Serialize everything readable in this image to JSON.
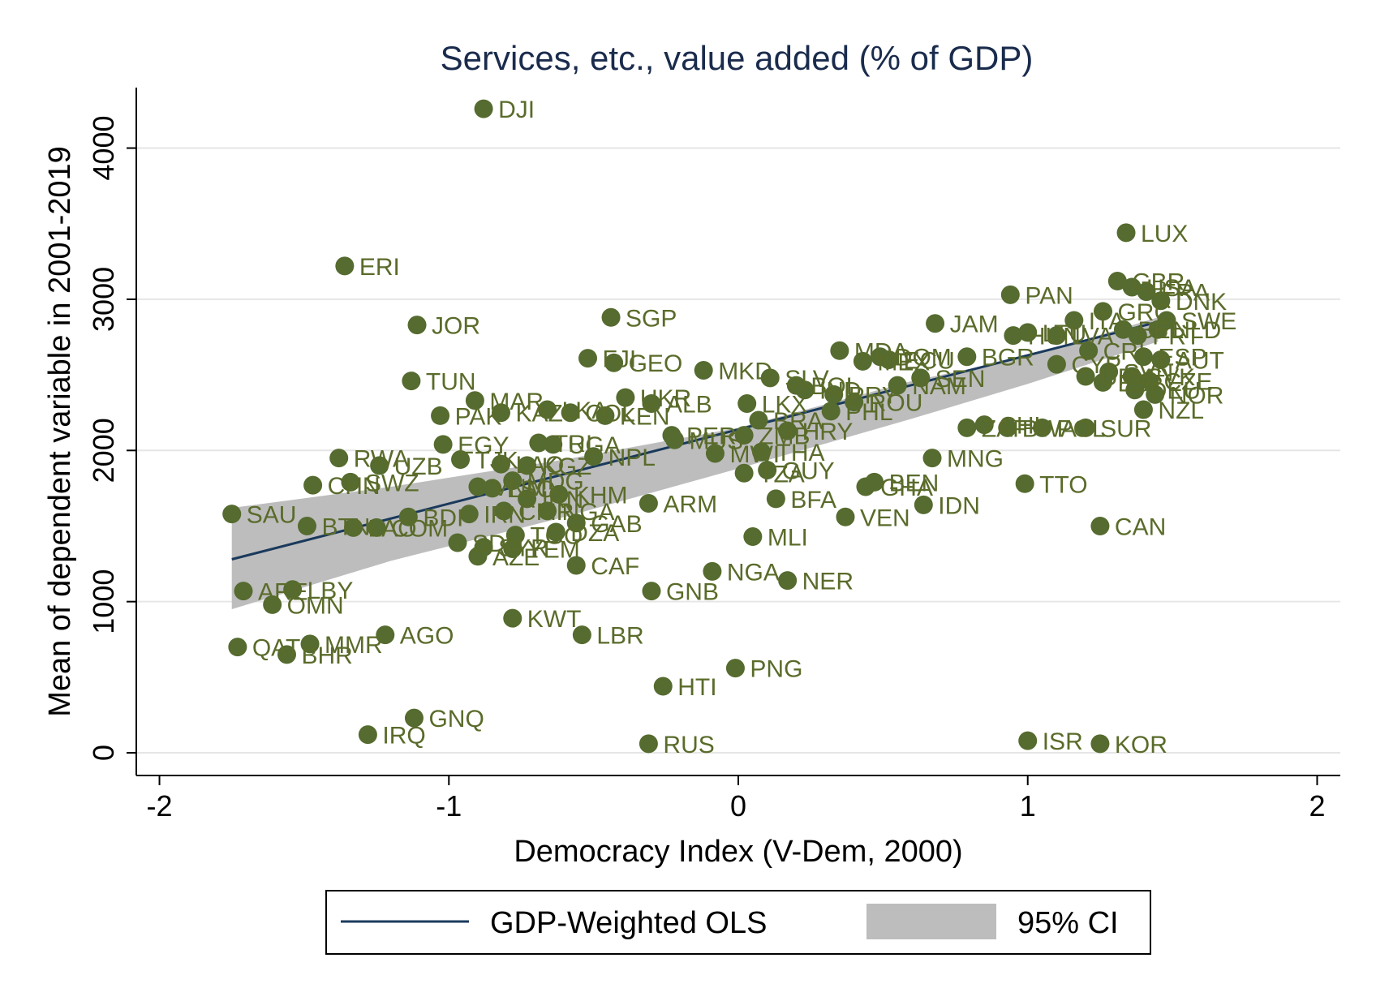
{
  "chart_data": {
    "type": "scatter",
    "title": "Services, etc., value added (% of GDP)",
    "xlabel": "Democracy Index (V-Dem, 2000)",
    "ylabel": "Mean of dependent variable in 2001-2019",
    "xlim": [
      -2.08,
      2.08
    ],
    "ylim": [
      -150,
      4400
    ],
    "xticks": [
      -2,
      -1,
      0,
      1,
      2
    ],
    "xtick_labels": [
      "-2",
      "-1",
      "0",
      "1",
      "2"
    ],
    "yticks": [
      0,
      1000,
      2000,
      3000,
      4000
    ],
    "ytick_labels": [
      "0",
      "1000",
      "2000",
      "3000",
      "4000"
    ],
    "grid": "horizontal",
    "legend_position": "bottom",
    "legend": [
      "GDP-Weighted OLS",
      "95% CI"
    ],
    "colors": {
      "points": "#556b2f",
      "label": "#5a6b2a",
      "fit": "#1a3a5c",
      "ci": "#bdbdbd",
      "title": "#1a2b4c"
    },
    "fit_line": {
      "x": [
        -1.75,
        1.45
      ],
      "y": [
        1280,
        2850
      ]
    },
    "ci_band": {
      "x": [
        -1.75,
        -1.2,
        -0.6,
        0.0,
        0.6,
        1.0,
        1.45
      ],
      "lower": [
        950,
        1270,
        1560,
        1880,
        2210,
        2440,
        2720
      ],
      "upper": [
        1620,
        1760,
        1940,
        2150,
        2460,
        2620,
        2880
      ]
    },
    "points": [
      {
        "x": -0.88,
        "y": 4260,
        "label": "DJI"
      },
      {
        "x": -1.36,
        "y": 3220,
        "label": "ERI"
      },
      {
        "x": -1.11,
        "y": 2830,
        "label": "JOR"
      },
      {
        "x": -0.44,
        "y": 2880,
        "label": "SGP"
      },
      {
        "x": -1.13,
        "y": 2460,
        "label": "TUN"
      },
      {
        "x": -0.52,
        "y": 2610,
        "label": "FJI"
      },
      {
        "x": -0.43,
        "y": 2580,
        "label": "GEO"
      },
      {
        "x": -0.12,
        "y": 2530,
        "label": "MKD"
      },
      {
        "x": 0.11,
        "y": 2480,
        "label": "SLV"
      },
      {
        "x": -0.91,
        "y": 2330,
        "label": "MAR"
      },
      {
        "x": -0.39,
        "y": 2350,
        "label": "UKR"
      },
      {
        "x": -0.3,
        "y": 2310,
        "label": "ALB"
      },
      {
        "x": -1.03,
        "y": 2230,
        "label": "PAK"
      },
      {
        "x": -0.82,
        "y": 2250,
        "label": "KAZ"
      },
      {
        "x": -0.66,
        "y": 2270,
        "label": "LKA"
      },
      {
        "x": -0.58,
        "y": 2250,
        "label": "COL"
      },
      {
        "x": -0.46,
        "y": 2230,
        "label": "KEN"
      },
      {
        "x": -1.02,
        "y": 2040,
        "label": "EGY"
      },
      {
        "x": -0.69,
        "y": 2050,
        "label": "TRI"
      },
      {
        "x": -0.64,
        "y": 2040,
        "label": "UGA"
      },
      {
        "x": -0.23,
        "y": 2100,
        "label": "PER"
      },
      {
        "x": -0.22,
        "y": 2070,
        "label": "MUS"
      },
      {
        "x": 0.03,
        "y": 2310,
        "label": "LKX"
      },
      {
        "x": 0.07,
        "y": 2200,
        "label": "BRA"
      },
      {
        "x": 0.17,
        "y": 2130,
        "label": "HRY"
      },
      {
        "x": 0.02,
        "y": 2100,
        "label": "ZMB"
      },
      {
        "x": -0.08,
        "y": 1980,
        "label": "MWI"
      },
      {
        "x": 0.08,
        "y": 1990,
        "label": "THA"
      },
      {
        "x": 0.1,
        "y": 1870,
        "label": "GUY"
      },
      {
        "x": 0.02,
        "y": 1850,
        "label": "TZA"
      },
      {
        "x": -1.38,
        "y": 1950,
        "label": "RWA"
      },
      {
        "x": -1.24,
        "y": 1900,
        "label": "UZB"
      },
      {
        "x": -0.96,
        "y": 1940,
        "label": "TJK"
      },
      {
        "x": -0.82,
        "y": 1910,
        "label": "LAO"
      },
      {
        "x": -0.73,
        "y": 1900,
        "label": "KGZ"
      },
      {
        "x": -0.5,
        "y": 1960,
        "label": "NPL"
      },
      {
        "x": -1.47,
        "y": 1770,
        "label": "CHN"
      },
      {
        "x": -1.34,
        "y": 1790,
        "label": "SWZ"
      },
      {
        "x": -0.9,
        "y": 1760,
        "label": "VNM"
      },
      {
        "x": -0.85,
        "y": 1750,
        "label": "LSO"
      },
      {
        "x": -0.78,
        "y": 1800,
        "label": "MDG"
      },
      {
        "x": -0.62,
        "y": 1710,
        "label": "KHM"
      },
      {
        "x": -0.73,
        "y": 1680,
        "label": "IRN"
      },
      {
        "x": -0.66,
        "y": 1600,
        "label": "NGA"
      },
      {
        "x": -1.75,
        "y": 1580,
        "label": "SAU"
      },
      {
        "x": -1.49,
        "y": 1500,
        "label": "BTN"
      },
      {
        "x": -1.33,
        "y": 1490,
        "label": "LAO"
      },
      {
        "x": -1.25,
        "y": 1490,
        "label": "COM"
      },
      {
        "x": -1.14,
        "y": 1560,
        "label": "BDI"
      },
      {
        "x": -0.93,
        "y": 1580,
        "label": "IRN"
      },
      {
        "x": -0.81,
        "y": 1600,
        "label": "CMR"
      },
      {
        "x": -0.56,
        "y": 1520,
        "label": "GAB"
      },
      {
        "x": -0.31,
        "y": 1650,
        "label": "ARM"
      },
      {
        "x": -0.97,
        "y": 1390,
        "label": "SDN"
      },
      {
        "x": -0.88,
        "y": 1360,
        "label": "SYR"
      },
      {
        "x": -0.77,
        "y": 1440,
        "label": "TGO"
      },
      {
        "x": -0.63,
        "y": 1460,
        "label": "DZA"
      },
      {
        "x": -0.9,
        "y": 1300,
        "label": "AZE"
      },
      {
        "x": -0.78,
        "y": 1350,
        "label": "YEM"
      },
      {
        "x": -0.56,
        "y": 1240,
        "label": "CAF"
      },
      {
        "x": -1.71,
        "y": 1070,
        "label": "ARE"
      },
      {
        "x": -1.54,
        "y": 1080,
        "label": "LBY"
      },
      {
        "x": -1.61,
        "y": 980,
        "label": "OMN"
      },
      {
        "x": -1.73,
        "y": 700,
        "label": "QAT"
      },
      {
        "x": -1.48,
        "y": 720,
        "label": "MMR"
      },
      {
        "x": -1.56,
        "y": 650,
        "label": "BHR"
      },
      {
        "x": -1.22,
        "y": 780,
        "label": "AGO"
      },
      {
        "x": -0.78,
        "y": 890,
        "label": "KWT"
      },
      {
        "x": -0.54,
        "y": 780,
        "label": "LBR"
      },
      {
        "x": -0.3,
        "y": 1070,
        "label": "GNB"
      },
      {
        "x": -0.09,
        "y": 1200,
        "label": "NGA"
      },
      {
        "x": 0.17,
        "y": 1140,
        "label": "NER"
      },
      {
        "x": 0.05,
        "y": 1430,
        "label": "MLI"
      },
      {
        "x": 0.13,
        "y": 1680,
        "label": "BFA"
      },
      {
        "x": 0.37,
        "y": 1560,
        "label": "VEN"
      },
      {
        "x": 0.44,
        "y": 1760,
        "label": "GHA"
      },
      {
        "x": 0.47,
        "y": 1790,
        "label": "BEN"
      },
      {
        "x": 0.64,
        "y": 1640,
        "label": "IDN"
      },
      {
        "x": 0.67,
        "y": 1950,
        "label": "MNG"
      },
      {
        "x": 0.99,
        "y": 1780,
        "label": "TTO"
      },
      {
        "x": 1.25,
        "y": 1500,
        "label": "CAN"
      },
      {
        "x": -0.26,
        "y": 440,
        "label": "HTI"
      },
      {
        "x": -0.01,
        "y": 560,
        "label": "PNG"
      },
      {
        "x": -1.12,
        "y": 230,
        "label": "GNQ"
      },
      {
        "x": -1.28,
        "y": 120,
        "label": "IRQ"
      },
      {
        "x": -0.31,
        "y": 60,
        "label": "RUS"
      },
      {
        "x": 1.0,
        "y": 80,
        "label": "ISR"
      },
      {
        "x": 1.25,
        "y": 60,
        "label": "KOR"
      },
      {
        "x": 0.35,
        "y": 2660,
        "label": "MDA"
      },
      {
        "x": 0.43,
        "y": 2590,
        "label": "MEX"
      },
      {
        "x": 0.49,
        "y": 2620,
        "label": "DOM"
      },
      {
        "x": 0.52,
        "y": 2600,
        "label": "ECU"
      },
      {
        "x": 0.79,
        "y": 2620,
        "label": "BGR"
      },
      {
        "x": 0.63,
        "y": 2480,
        "label": "SEN"
      },
      {
        "x": 0.55,
        "y": 2430,
        "label": "NAM"
      },
      {
        "x": 0.2,
        "y": 2430,
        "label": "BOL"
      },
      {
        "x": 0.23,
        "y": 2400,
        "label": "IND"
      },
      {
        "x": 0.33,
        "y": 2370,
        "label": "PRY"
      },
      {
        "x": 0.4,
        "y": 2320,
        "label": "ROU"
      },
      {
        "x": 0.32,
        "y": 2260,
        "label": "PHL"
      },
      {
        "x": 0.68,
        "y": 2840,
        "label": "JAM"
      },
      {
        "x": 0.94,
        "y": 3030,
        "label": "PAN"
      },
      {
        "x": 0.95,
        "y": 2760,
        "label": "HUN"
      },
      {
        "x": 1.0,
        "y": 2780,
        "label": "LTU"
      },
      {
        "x": 1.1,
        "y": 2760,
        "label": "LVA"
      },
      {
        "x": 1.16,
        "y": 2860,
        "label": "ITA"
      },
      {
        "x": 1.1,
        "y": 2570,
        "label": "CYP"
      },
      {
        "x": 0.79,
        "y": 2150,
        "label": "ZAF"
      },
      {
        "x": 0.85,
        "y": 2170,
        "label": "CHL"
      },
      {
        "x": 0.93,
        "y": 2150,
        "label": "BWA"
      },
      {
        "x": 1.05,
        "y": 2150,
        "label": "POL"
      },
      {
        "x": 1.2,
        "y": 2150,
        "label": "SUR"
      },
      {
        "x": 1.34,
        "y": 3440,
        "label": "LUX"
      },
      {
        "x": 1.31,
        "y": 3120,
        "label": "GBR"
      },
      {
        "x": 1.36,
        "y": 3080,
        "label": "USA"
      },
      {
        "x": 1.41,
        "y": 3050,
        "label": "FRA"
      },
      {
        "x": 1.46,
        "y": 2990,
        "label": "DNK"
      },
      {
        "x": 1.26,
        "y": 2920,
        "label": "GRC"
      },
      {
        "x": 1.33,
        "y": 2800,
        "label": "BEL"
      },
      {
        "x": 1.48,
        "y": 2860,
        "label": "SWE"
      },
      {
        "x": 1.45,
        "y": 2800,
        "label": "NLD"
      },
      {
        "x": 1.38,
        "y": 2760,
        "label": "PRT"
      },
      {
        "x": 1.21,
        "y": 2660,
        "label": "CRI"
      },
      {
        "x": 1.4,
        "y": 2620,
        "label": "ESP"
      },
      {
        "x": 1.46,
        "y": 2600,
        "label": "AUT"
      },
      {
        "x": 1.28,
        "y": 2520,
        "label": "SVN"
      },
      {
        "x": 1.36,
        "y": 2490,
        "label": "SVK"
      },
      {
        "x": 1.42,
        "y": 2460,
        "label": "CZE"
      },
      {
        "x": 1.2,
        "y": 2490,
        "label": "URY"
      },
      {
        "x": 1.26,
        "y": 2450,
        "label": "EST"
      },
      {
        "x": 1.37,
        "y": 2400,
        "label": "DEU"
      },
      {
        "x": 1.44,
        "y": 2370,
        "label": "NOR"
      },
      {
        "x": 1.4,
        "y": 2270,
        "label": "NZL"
      }
    ]
  },
  "x_axis": {
    "label": "Democracy Index (V-Dem, 2000)"
  },
  "y_axis": {
    "label": "Mean of dependent variable in 2001-2019"
  },
  "legend": {
    "fit_label": "GDP-Weighted OLS",
    "ci_label": "95% CI"
  }
}
